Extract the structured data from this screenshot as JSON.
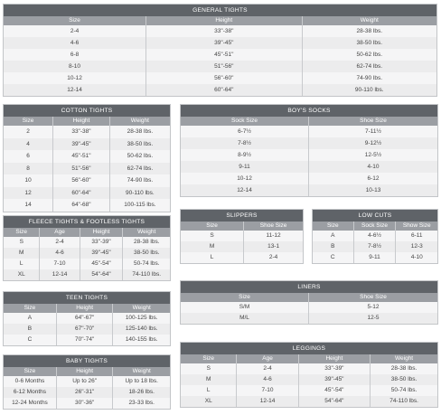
{
  "general_tights": {
    "title": "GENERAL TIGHTS",
    "headers": [
      "Size",
      "Height",
      "Weight"
    ],
    "rows": [
      [
        "2-4",
        "33\"-38\"",
        "28-38 lbs."
      ],
      [
        "4-6",
        "39\"-45\"",
        "38-50 lbs."
      ],
      [
        "6-8",
        "45\"-51\"",
        "50-62 lbs."
      ],
      [
        "8-10",
        "51\"-56\"",
        "62-74 lbs."
      ],
      [
        "10-12",
        "56\"-60\"",
        "74-90 lbs."
      ],
      [
        "12-14",
        "60\"-64\"",
        "90-110 lbs."
      ]
    ]
  },
  "cotton_tights": {
    "title": "COTTON TIGHTS",
    "headers": [
      "Size",
      "Height",
      "Weight"
    ],
    "rows": [
      [
        "2",
        "33\"-38\"",
        "28-38 lbs."
      ],
      [
        "4",
        "39\"-45\"",
        "38-50 lbs."
      ],
      [
        "6",
        "45\"-51\"",
        "50-62 lbs."
      ],
      [
        "8",
        "51\"-56\"",
        "62-74 lbs."
      ],
      [
        "10",
        "56\"-60\"",
        "74-90 lbs."
      ],
      [
        "12",
        "60\"-64\"",
        "90-110 lbs."
      ],
      [
        "14",
        "64\"-68\"",
        "100-115 lbs."
      ]
    ]
  },
  "boys_socks": {
    "title": "BOY'S SOCKS",
    "headers": [
      "Sock Size",
      "Shoe Size"
    ],
    "rows": [
      [
        "6-7½",
        "7-11½"
      ],
      [
        "7-8½",
        "9-12½"
      ],
      [
        "8-9½",
        "12-5½"
      ],
      [
        "9-11",
        "4-10"
      ],
      [
        "10-12",
        "6-12"
      ],
      [
        "12-14",
        "10-13"
      ]
    ]
  },
  "fleece_tights": {
    "title": "FLEECE TIGHTS & FOOTLESS TIGHTS",
    "headers": [
      "Size",
      "Age",
      "Height",
      "Weight"
    ],
    "rows": [
      [
        "S",
        "2-4",
        "33\"-39\"",
        "28-38 lbs."
      ],
      [
        "M",
        "4-6",
        "39\"-45\"",
        "38-50 lbs."
      ],
      [
        "L",
        "7-10",
        "45\"-54\"",
        "50-74 lbs."
      ],
      [
        "XL",
        "12-14",
        "54\"-64\"",
        "74-110 lbs."
      ]
    ]
  },
  "slippers": {
    "title": "SLIPPERS",
    "headers": [
      "Size",
      "Shoe Size"
    ],
    "rows": [
      [
        "S",
        "11-12"
      ],
      [
        "M",
        "13-1"
      ],
      [
        "L",
        "2-4"
      ]
    ]
  },
  "low_cuts": {
    "title": "LOW CUTS",
    "headers": [
      "Size",
      "Sock Size",
      "Show Size"
    ],
    "rows": [
      [
        "A",
        "4-6½",
        "6-11"
      ],
      [
        "B",
        "7-8½",
        "12-3"
      ],
      [
        "C",
        "9-11",
        "4-10"
      ]
    ]
  },
  "teen_tights": {
    "title": "TEEN TIGHTS",
    "headers": [
      "Size",
      "Height",
      "Weight"
    ],
    "rows": [
      [
        "A",
        "64\"-67\"",
        "100-125 lbs."
      ],
      [
        "B",
        "67\"-70\"",
        "125-140 lbs."
      ],
      [
        "C",
        "70\"-74\"",
        "140-155 lbs."
      ]
    ]
  },
  "liners": {
    "title": "LINERS",
    "headers": [
      "Size",
      "Shoe Size"
    ],
    "rows": [
      [
        "S/M",
        "5-12"
      ],
      [
        "M/L",
        "12-5"
      ]
    ]
  },
  "baby_tights": {
    "title": "BABY TIGHTS",
    "headers": [
      "Size",
      "Height",
      "Weight"
    ],
    "rows": [
      [
        "0-6 Months",
        "Up to 26\"",
        "Up to 18 lbs."
      ],
      [
        "6-12 Months",
        "26\"-31\"",
        "18-26 lbs."
      ],
      [
        "12-24 Months",
        "30\"-36\"",
        "23-33 lbs."
      ]
    ]
  },
  "leggings": {
    "title": "LEGGINGS",
    "headers": [
      "Size",
      "Age",
      "Height",
      "Weight"
    ],
    "rows": [
      [
        "S",
        "2-4",
        "33\"-39\"",
        "28-38 lbs."
      ],
      [
        "M",
        "4-6",
        "39\"-45\"",
        "38-50 lbs."
      ],
      [
        "L",
        "7-10",
        "45\"-54\"",
        "50-74 lbs."
      ],
      [
        "XL",
        "12-14",
        "54\"-64\"",
        "74-110 lbs."
      ]
    ]
  }
}
